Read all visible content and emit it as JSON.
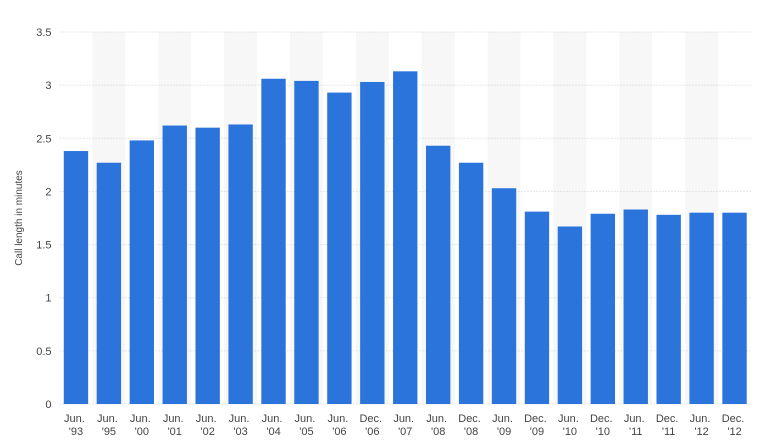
{
  "chart_data": {
    "type": "bar",
    "y_label": "Call length in minutes",
    "categories": [
      "Jun. '93",
      "Jun. '95",
      "Jun. '00",
      "Jun. '01",
      "Jun. '02",
      "Jun. '03",
      "Jun. '04",
      "Jun. '05",
      "Jun. '06",
      "Dec. '06",
      "Jun. '07",
      "Jun. '08",
      "Dec. '08",
      "Jun. '09",
      "Dec. '09",
      "Jun. '10",
      "Dec. '10",
      "Jun. '11",
      "Dec. '11",
      "Jun. '12",
      "Dec. '12"
    ],
    "values": [
      2.38,
      2.27,
      2.48,
      2.62,
      2.6,
      2.63,
      3.06,
      3.04,
      2.93,
      3.03,
      3.13,
      2.43,
      2.27,
      2.03,
      1.81,
      1.67,
      1.79,
      1.83,
      1.78,
      1.8,
      1.8
    ],
    "color": "#2a74db",
    "ylim": [
      0,
      3.5
    ],
    "yticks": [
      0,
      0.5,
      1,
      1.5,
      2,
      2.5,
      3,
      3.5
    ],
    "grid": true
  }
}
